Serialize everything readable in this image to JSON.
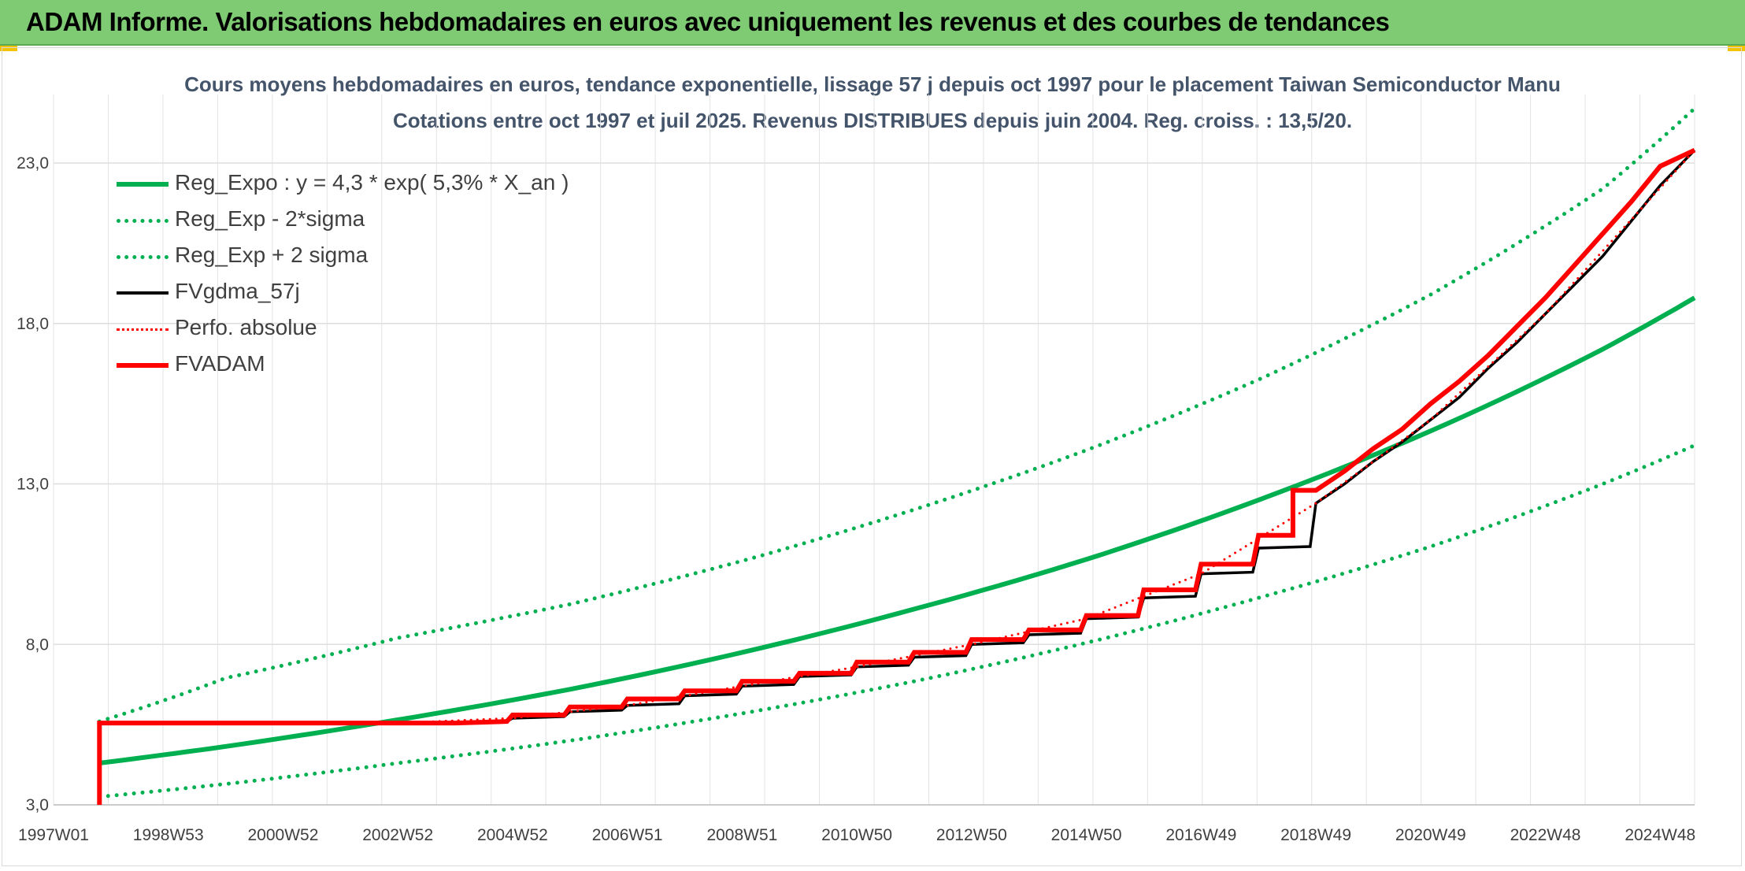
{
  "header": {
    "title": "ADAM Informe. Valorisations hebdomadaires en euros avec uniquement les revenus et des courbes de tendances"
  },
  "colors": {
    "header_bg": "#7ecb73",
    "green": "#00b050",
    "red": "#ff0000",
    "black": "#000000",
    "title_text": "#44546a"
  },
  "chart_data": {
    "type": "line",
    "title": "Cours moyens hebdomadaires en euros, tendance exponentielle, lissage 57 j depuis oct 1997 pour le placement Taiwan Semiconductor Manu",
    "subtitle": "Cotations entre oct 1997 et juil 2025. Revenus DISTRIBUES depuis juin 2004. Reg. croiss. : 13,5/20.",
    "xlabel": "",
    "ylabel": "",
    "ylim": [
      3,
      23
    ],
    "y_ticks": [
      "3,0",
      "8,0",
      "13,0",
      "18,0",
      "23,0"
    ],
    "x_ticks": [
      "1997W01",
      "1998W53",
      "2000W52",
      "2002W52",
      "2004W52",
      "2006W51",
      "2008W51",
      "2010W50",
      "2012W50",
      "2014W50",
      "2016W49",
      "2018W49",
      "2020W49",
      "2022W48",
      "2024W48"
    ],
    "x_tick_years": [
      1997.0,
      1999.0,
      2001.0,
      2003.0,
      2005.0,
      2007.0,
      2009.0,
      2011.0,
      2013.0,
      2015.0,
      2017.0,
      2019.0,
      2021.0,
      2023.0,
      2025.0
    ],
    "x_range": [
      1997.0,
      2025.6
    ],
    "grid": true,
    "legend_position": "top-left",
    "series": [
      {
        "name": "Reg_Expo : y = 4,3 * exp( 5,3% *  X_an )",
        "style": "solid",
        "color": "#00b050",
        "x": [
          1997.8,
          2000,
          2003,
          2006,
          2009,
          2012,
          2015,
          2018,
          2021,
          2024,
          2025.6
        ],
        "y": [
          4.3,
          4.82,
          5.65,
          6.6,
          7.75,
          9.1,
          10.65,
          12.5,
          14.65,
          17.2,
          18.8
        ]
      },
      {
        "name": "Reg_Exp - 2*sigma",
        "style": "dotted",
        "color": "#00b050",
        "x": [
          1997.8,
          2000,
          2003,
          2006,
          2009,
          2012,
          2015,
          2018,
          2021,
          2024,
          2025.6
        ],
        "y": [
          3.25,
          3.65,
          4.3,
          5.0,
          5.85,
          6.85,
          8.05,
          9.45,
          11.05,
          13.0,
          14.2
        ]
      },
      {
        "name": "Reg_Exp + 2 sigma",
        "style": "dotted",
        "color": "#00b050",
        "x": [
          1997.8,
          2000,
          2003,
          2006,
          2009,
          2012,
          2015,
          2018,
          2021,
          2024,
          2025.6
        ],
        "y": [
          5.6,
          6.95,
          8.2,
          9.25,
          10.6,
          12.2,
          14.05,
          16.25,
          18.9,
          22.2,
          24.7
        ]
      },
      {
        "name": "FVgdma_57j",
        "style": "solid-thin",
        "color": "#000000",
        "x": [
          1997.8,
          1997.8,
          2004.0,
          2004.9,
          2005.0,
          2005.9,
          2006.0,
          2006.9,
          2007.0,
          2007.9,
          2008.0,
          2008.9,
          2009.0,
          2009.9,
          2010.0,
          2010.9,
          2011.0,
          2011.9,
          2012.0,
          2012.9,
          2013.0,
          2013.9,
          2014.0,
          2014.9,
          2015.0,
          2015.9,
          2016.0,
          2016.9,
          2017.0,
          2017.9,
          2018.0,
          2018.9,
          2019.0,
          2019.5,
          2020.0,
          2020.5,
          2021.0,
          2021.5,
          2022.0,
          2022.5,
          2023.0,
          2023.5,
          2024.0,
          2024.5,
          2025.0,
          2025.6
        ],
        "y": [
          3.0,
          5.55,
          5.55,
          5.6,
          5.7,
          5.75,
          5.9,
          5.95,
          6.1,
          6.15,
          6.4,
          6.45,
          6.7,
          6.75,
          7.0,
          7.05,
          7.3,
          7.35,
          7.6,
          7.65,
          8.0,
          8.05,
          8.3,
          8.35,
          8.8,
          8.85,
          9.45,
          9.5,
          10.2,
          10.25,
          11.0,
          11.05,
          12.4,
          13.0,
          13.7,
          14.3,
          15.0,
          15.7,
          16.6,
          17.4,
          18.3,
          19.2,
          20.1,
          21.2,
          22.3,
          23.4
        ]
      },
      {
        "name": "Perfo. absolue",
        "style": "dotted-thin",
        "color": "#ff0000",
        "x": [
          1997.8,
          2003.0,
          2005.0,
          2007.0,
          2009.0,
          2011.0,
          2013.0,
          2015.0,
          2017.0,
          2019.0,
          2021.0,
          2023.0,
          2025.6
        ],
        "y": [
          5.55,
          5.55,
          5.7,
          6.1,
          6.7,
          7.3,
          8.0,
          8.8,
          10.2,
          12.4,
          15.0,
          18.3,
          23.4
        ]
      },
      {
        "name": "FVADAM",
        "style": "solid",
        "color": "#ff0000",
        "x": [
          1997.8,
          1997.8,
          2004.0,
          2004.9,
          2005.0,
          2005.9,
          2006.0,
          2006.9,
          2007.0,
          2007.9,
          2008.0,
          2008.9,
          2009.0,
          2009.9,
          2010.0,
          2010.9,
          2011.0,
          2011.9,
          2012.0,
          2012.9,
          2013.0,
          2013.9,
          2014.0,
          2014.9,
          2015.0,
          2015.9,
          2016.0,
          2016.9,
          2017.0,
          2017.9,
          2018.0,
          2018.6,
          2018.6,
          2019.0,
          2019.5,
          2020.0,
          2020.5,
          2021.0,
          2021.5,
          2022.0,
          2022.5,
          2023.0,
          2023.5,
          2024.0,
          2024.5,
          2025.0,
          2025.6
        ],
        "y": [
          3.0,
          5.55,
          5.55,
          5.6,
          5.8,
          5.8,
          6.05,
          6.05,
          6.3,
          6.3,
          6.55,
          6.55,
          6.85,
          6.85,
          7.1,
          7.1,
          7.45,
          7.45,
          7.75,
          7.75,
          8.15,
          8.15,
          8.45,
          8.45,
          8.9,
          8.9,
          9.7,
          9.7,
          10.5,
          10.5,
          11.4,
          11.4,
          12.8,
          12.8,
          13.4,
          14.1,
          14.7,
          15.5,
          16.2,
          17.0,
          17.9,
          18.8,
          19.8,
          20.8,
          21.8,
          22.9,
          23.4
        ]
      }
    ]
  }
}
